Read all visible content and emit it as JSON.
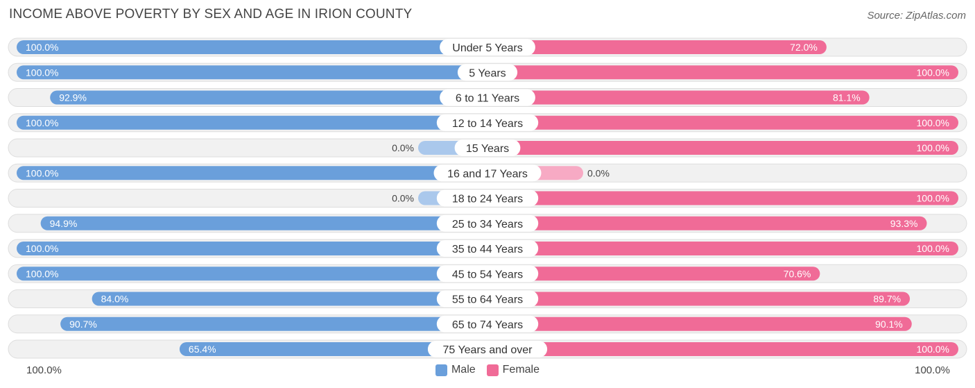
{
  "header": {
    "title": "INCOME ABOVE POVERTY BY SEX AND AGE IN IRION COUNTY",
    "source": "Source: ZipAtlas.com"
  },
  "colors": {
    "male": "#6a9fdb",
    "male_light": "#aac8ec",
    "female": "#f06b97",
    "female_light": "#f7aac4",
    "track": "#f1f1f1",
    "track_border": "#dddddd"
  },
  "chart_data": {
    "type": "bar",
    "orientation": "horizontal-diverging",
    "title": "INCOME ABOVE POVERTY BY SEX AND AGE IN IRION COUNTY",
    "categories": [
      "Under 5 Years",
      "5 Years",
      "6 to 11 Years",
      "12 to 14 Years",
      "15 Years",
      "16 and 17 Years",
      "18 to 24 Years",
      "25 to 34 Years",
      "35 to 44 Years",
      "45 to 54 Years",
      "55 to 64 Years",
      "65 to 74 Years",
      "75 Years and over"
    ],
    "series": [
      {
        "name": "Male",
        "values": [
          100.0,
          100.0,
          92.9,
          100.0,
          0.0,
          100.0,
          0.0,
          94.9,
          100.0,
          100.0,
          84.0,
          90.7,
          65.4
        ],
        "labels": [
          "100.0%",
          "100.0%",
          "92.9%",
          "100.0%",
          "0.0%",
          "100.0%",
          "0.0%",
          "94.9%",
          "100.0%",
          "100.0%",
          "84.0%",
          "90.7%",
          "65.4%"
        ]
      },
      {
        "name": "Female",
        "values": [
          72.0,
          100.0,
          81.1,
          100.0,
          100.0,
          0.0,
          100.0,
          93.3,
          100.0,
          70.6,
          89.7,
          90.1,
          100.0
        ],
        "labels": [
          "72.0%",
          "100.0%",
          "81.1%",
          "100.0%",
          "100.0%",
          "0.0%",
          "100.0%",
          "93.3%",
          "100.0%",
          "70.6%",
          "89.7%",
          "90.1%",
          "100.0%"
        ]
      }
    ],
    "xlim": [
      0,
      100
    ],
    "axis_left_label": "100.0%",
    "axis_right_label": "100.0%",
    "legend": [
      "Male",
      "Female"
    ],
    "legend_position": "bottom-center",
    "grid": false
  }
}
